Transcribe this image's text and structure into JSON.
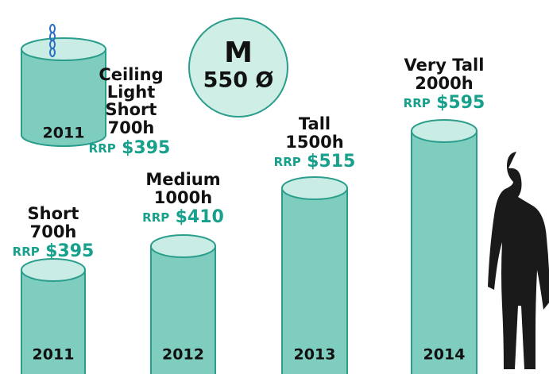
{
  "size_badge": {
    "size": "M",
    "diameter": "550 Ø"
  },
  "ceiling_light": {
    "name_lines": [
      "Ceiling",
      "Light",
      "Short"
    ],
    "height": "700h",
    "rrp": "RRP",
    "price": "$395",
    "year": "2011"
  },
  "products": [
    {
      "name": "Short",
      "height": "700h",
      "rrp": "RRP",
      "price": "$395",
      "year": "2011"
    },
    {
      "name": "Medium",
      "height": "1000h",
      "rrp": "RRP",
      "price": "$410",
      "year": "2012"
    },
    {
      "name": "Tall",
      "height": "1500h",
      "rrp": "RRP",
      "price": "$515",
      "year": "2013"
    },
    {
      "name": "Very Tall",
      "height": "2000h",
      "rrp": "RRP",
      "price": "$595",
      "year": "2014"
    }
  ]
}
